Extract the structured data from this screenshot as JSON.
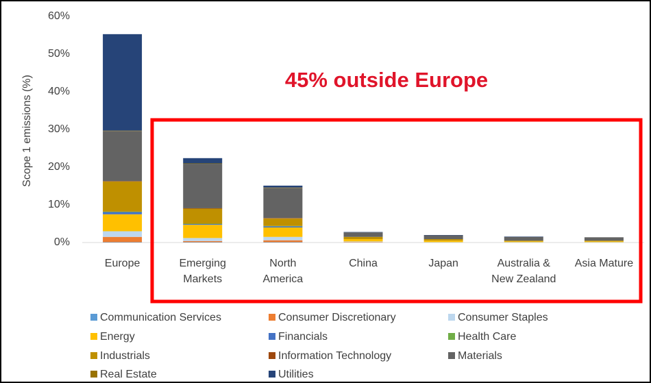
{
  "chart_data": {
    "type": "stacked_bar",
    "y_label": "Scope 1 emissions (%)",
    "annotation": "45% outside Europe",
    "categories": [
      "Europe",
      "Emerging Markets",
      "North America",
      "China",
      "Japan",
      "Australia & New Zealand",
      "Asia Mature"
    ],
    "ylim": [
      0,
      60
    ],
    "yticks": [
      {
        "value": 0,
        "label": "0%"
      },
      {
        "value": 10,
        "label": "10%"
      },
      {
        "value": 20,
        "label": "20%"
      },
      {
        "value": 30,
        "label": "30%"
      },
      {
        "value": 40,
        "label": "40%"
      },
      {
        "value": 50,
        "label": "50%"
      },
      {
        "value": 60,
        "label": "60%"
      }
    ],
    "grid": false,
    "legend": "bottom",
    "series": [
      {
        "name": "Communication Services",
        "color": "#5b9bd5",
        "values": [
          0.1,
          0.1,
          0.1,
          0,
          0,
          0,
          0
        ]
      },
      {
        "name": "Consumer Discretionary",
        "color": "#ed7d31",
        "values": [
          1.4,
          0.3,
          0.5,
          0.1,
          0,
          0,
          0
        ]
      },
      {
        "name": "Consumer Staples",
        "color": "#bdd7ee",
        "values": [
          1.5,
          0.8,
          0.9,
          0.2,
          0.1,
          0.1,
          0.1
        ]
      },
      {
        "name": "Energy",
        "color": "#ffc000",
        "values": [
          4.5,
          3.5,
          2.5,
          0.6,
          0.4,
          0.2,
          0.2
        ]
      },
      {
        "name": "Financials",
        "color": "#4472c4",
        "values": [
          0.6,
          0.2,
          0.3,
          0,
          0,
          0,
          0
        ]
      },
      {
        "name": "Health Care",
        "color": "#70ad47",
        "values": [
          0.1,
          0.1,
          0.1,
          0,
          0,
          0,
          0
        ]
      },
      {
        "name": "Industrials",
        "color": "#bf9000",
        "values": [
          8,
          4,
          2,
          0.6,
          0.4,
          0.2,
          0.2
        ]
      },
      {
        "name": "Information Technology",
        "color": "#9e480e",
        "values": [
          0.1,
          0.1,
          0.1,
          0,
          0,
          0,
          0
        ]
      },
      {
        "name": "Materials",
        "color": "#636363",
        "values": [
          13.3,
          11.8,
          8,
          1.2,
          1,
          1,
          0.9
        ]
      },
      {
        "name": "Real Estate",
        "color": "#997300",
        "values": [
          0.1,
          0.1,
          0.1,
          0,
          0,
          0,
          0
        ]
      },
      {
        "name": "Utilities",
        "color": "#264478",
        "values": [
          25.6,
          1.4,
          0.5,
          0.1,
          0.1,
          0.1,
          0
        ]
      }
    ]
  }
}
